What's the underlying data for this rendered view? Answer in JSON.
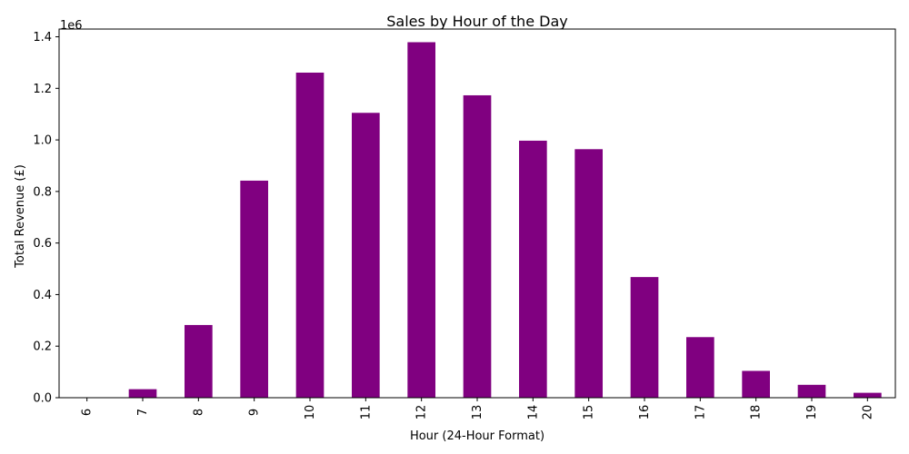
{
  "chart_data": {
    "type": "bar",
    "title": "Sales by Hour of the Day",
    "xlabel": "Hour (24-Hour Format)",
    "ylabel": "Total Revenue (£)",
    "y_multiplier_label": "1e6",
    "categories": [
      "6",
      "7",
      "8",
      "9",
      "10",
      "11",
      "12",
      "13",
      "14",
      "15",
      "16",
      "17",
      "18",
      "19",
      "20"
    ],
    "values": [
      0.001,
      0.033,
      0.282,
      0.842,
      1.261,
      1.105,
      1.379,
      1.173,
      0.997,
      0.964,
      0.468,
      0.235,
      0.104,
      0.05,
      0.019
    ],
    "ylim": [
      0,
      1.43
    ],
    "yticks": [
      "0.0",
      "0.2",
      "0.4",
      "0.6",
      "0.8",
      "1.0",
      "1.2",
      "1.4"
    ],
    "bar_color": "#800080",
    "grid": false,
    "legend": "none"
  }
}
